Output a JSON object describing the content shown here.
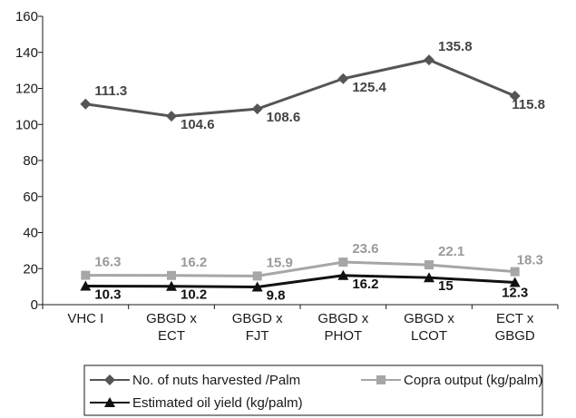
{
  "chart_data": {
    "type": "line",
    "categories": [
      [
        "VHC I"
      ],
      [
        "GBGD x",
        "ECT"
      ],
      [
        "GBGD x",
        "FJT"
      ],
      [
        "GBGD x",
        "PHOT"
      ],
      [
        "GBGD x",
        "LCOT"
      ],
      [
        "ECT x",
        "GBGD"
      ]
    ],
    "ylim": [
      0,
      160
    ],
    "yticks": [
      0,
      20,
      40,
      60,
      80,
      100,
      120,
      140,
      160
    ],
    "grid": false,
    "legend_position": "bottom",
    "series": [
      {
        "name": "No. of nuts harvested /Palm",
        "marker": "diamond",
        "color": "#555555",
        "label_color": "#444444",
        "values": [
          111.3,
          104.6,
          108.6,
          125.4,
          135.8,
          115.8
        ],
        "labels": [
          "111.3",
          "104.6",
          "108.6",
          "125.4",
          "135.8",
          "115.8"
        ]
      },
      {
        "name": "Copra output (kg/palm)",
        "marker": "square",
        "color": "#a6a6a6",
        "label_color": "#9a9a9a",
        "values": [
          16.3,
          16.2,
          15.9,
          23.6,
          22.1,
          18.3
        ],
        "labels": [
          "16.3",
          "16.2",
          "15.9",
          "23.6",
          "22.1",
          "18.3"
        ]
      },
      {
        "name": "Estimated oil yield (kg/palm)",
        "marker": "triangle",
        "color": "#111111",
        "label_color": "#111111",
        "values": [
          10.3,
          10.2,
          9.8,
          16.2,
          15,
          12.3
        ],
        "labels": [
          "10.3",
          "10.2",
          "9.8",
          "16.2",
          "15",
          "12.3"
        ]
      }
    ]
  }
}
